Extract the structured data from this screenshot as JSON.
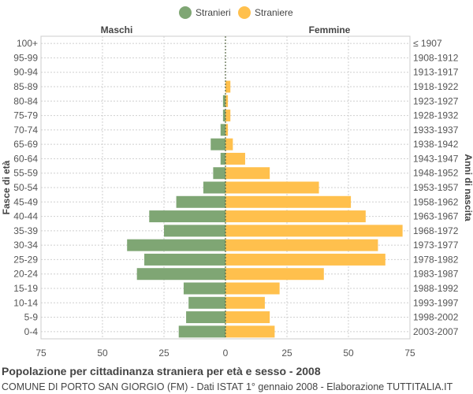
{
  "chart_data": {
    "type": "bar",
    "orientation": "horizontal-pyramid",
    "title": "Popolazione per cittadinanza straniera per età e sesso - 2008",
    "subtitle": "COMUNE DI PORTO SAN GIORGIO (FM) - Dati ISTAT 1° gennaio 2008 - Elaborazione TUTTITALIA.IT",
    "left_header": "Maschi",
    "right_header": "Femmine",
    "ylabel_left": "Fasce di età",
    "ylabel_right": "Anni di nascita",
    "xlim": [
      -75,
      75
    ],
    "xticks": [
      -75,
      -50,
      -25,
      0,
      25,
      50,
      75
    ],
    "xtick_labels": [
      "75",
      "50",
      "25",
      "0",
      "25",
      "50",
      "75"
    ],
    "grid": true,
    "legend_position": "top-center",
    "categories": [
      "100+",
      "95-99",
      "90-94",
      "85-89",
      "80-84",
      "75-79",
      "70-74",
      "65-69",
      "60-64",
      "55-59",
      "50-54",
      "45-49",
      "40-44",
      "35-39",
      "30-34",
      "25-29",
      "20-24",
      "15-19",
      "10-14",
      "5-9",
      "0-4"
    ],
    "birth_years": [
      "≤ 1907",
      "1908-1912",
      "1913-1917",
      "1918-1922",
      "1923-1927",
      "1928-1932",
      "1933-1937",
      "1938-1942",
      "1943-1947",
      "1948-1952",
      "1953-1957",
      "1958-1962",
      "1963-1967",
      "1968-1972",
      "1973-1977",
      "1978-1982",
      "1983-1987",
      "1988-1992",
      "1993-1997",
      "1998-2002",
      "2003-2007"
    ],
    "series": [
      {
        "name": "Stranieri",
        "color": "#7fa674",
        "values": [
          0,
          0,
          0,
          0,
          1,
          1,
          2,
          6,
          2,
          5,
          9,
          20,
          31,
          25,
          40,
          33,
          36,
          17,
          15,
          16,
          19
        ]
      },
      {
        "name": "Straniere",
        "color": "#ffc04d",
        "values": [
          0,
          0,
          0,
          2,
          1,
          2,
          1,
          3,
          8,
          18,
          38,
          51,
          57,
          72,
          62,
          65,
          40,
          22,
          16,
          18,
          20
        ]
      }
    ]
  }
}
